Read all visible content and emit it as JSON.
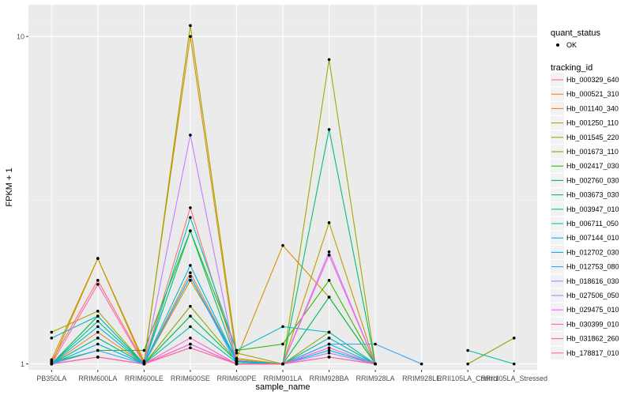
{
  "chart_data": {
    "type": "line",
    "title": "",
    "xlabel": "sample_name",
    "ylabel": "FPKM + 1",
    "y_scale": "log10",
    "ylim": [
      0.96,
      12.5
    ],
    "y_ticks": [
      1,
      10
    ],
    "grid": true,
    "legend_position": "right",
    "categories": [
      "PB350LA",
      "RRIM600LA",
      "RRIM600LE",
      "RRIM600SE",
      "RRIM600PE",
      "RRIM901LA",
      "RRIM928BA",
      "RRIM928LA",
      "RRIM928LE",
      "RRII105LA_Control",
      "RRII105LA_Stressed"
    ],
    "category_labels": [
      "PB350LA",
      "RRIM600LA",
      "RRIM600LE",
      "RRIM600SE",
      "RRIM600PE",
      "RRIM901LA",
      "RRIM928BA",
      "RRIM928LA",
      "RRIM928LE",
      "RRII105LA_Control",
      "RRII105LA_Stressed"
    ],
    "legend_quant": {
      "title": "quant_status",
      "entries": [
        "OK"
      ]
    },
    "legend_series_title": "tracking_id",
    "series": [
      {
        "name": "Hb_000329_640",
        "color": "#F8766D",
        "values": [
          1.02,
          1.8,
          1.01,
          3.0,
          1.03,
          1.0,
          1.2,
          1.0,
          null,
          null,
          null
        ]
      },
      {
        "name": "Hb_000521_310",
        "color": "#EA8331",
        "values": [
          1.0,
          1.25,
          1.0,
          1.9,
          1.02,
          1.0,
          1.05,
          1.0,
          null,
          null,
          null
        ]
      },
      {
        "name": "Hb_001140_340",
        "color": "#D89000",
        "values": [
          1.03,
          2.1,
          1.02,
          10.0,
          1.04,
          2.3,
          1.6,
          1.0,
          null,
          null,
          null
        ]
      },
      {
        "name": "Hb_001250_110",
        "color": "#C09B00",
        "values": [
          1.0,
          2.1,
          1.0,
          1.8,
          1.04,
          1.0,
          2.7,
          1.0,
          null,
          null,
          null
        ]
      },
      {
        "name": "Hb_001545_220",
        "color": "#A3A500",
        "values": [
          1.25,
          1.45,
          1.0,
          10.8,
          1.08,
          1.0,
          8.5,
          1.0,
          null,
          null,
          null
        ]
      },
      {
        "name": "Hb_001673_110",
        "color": "#7CAE00",
        "values": [
          1.0,
          1.2,
          1.0,
          1.5,
          1.02,
          1.0,
          1.25,
          1.0,
          null,
          1.0,
          1.2
        ]
      },
      {
        "name": "Hb_002417_030",
        "color": "#39B600",
        "values": [
          1.01,
          1.1,
          1.1,
          2.55,
          1.1,
          1.15,
          1.8,
          1.0,
          null,
          null,
          null
        ]
      },
      {
        "name": "Hb_002760_030",
        "color": "#00BB4E",
        "values": [
          1.0,
          1.4,
          1.0,
          1.4,
          1.02,
          1.0,
          1.6,
          1.0,
          null,
          null,
          null
        ]
      },
      {
        "name": "Hb_003673_030",
        "color": "#00BF7D",
        "values": [
          1.0,
          1.35,
          1.0,
          2.55,
          1.02,
          1.0,
          5.2,
          1.0,
          null,
          null,
          null
        ]
      },
      {
        "name": "Hb_003947_010",
        "color": "#00C1A3",
        "values": [
          1.0,
          1.2,
          1.0,
          1.3,
          1.01,
          1.0,
          1.2,
          1.0,
          null,
          1.1,
          1.0
        ]
      },
      {
        "name": "Hb_006711_050",
        "color": "#00BFC4",
        "values": [
          1.2,
          1.4,
          1.0,
          2.8,
          1.1,
          1.3,
          1.25,
          1.0,
          null,
          null,
          null
        ]
      },
      {
        "name": "Hb_007144_010",
        "color": "#00BAE0",
        "values": [
          1.0,
          1.3,
          1.0,
          2.0,
          1.02,
          1.0,
          1.15,
          1.0,
          null,
          null,
          null
        ]
      },
      {
        "name": "Hb_012702_030",
        "color": "#00B0F6",
        "values": [
          1.0,
          1.15,
          1.0,
          1.85,
          1.02,
          1.0,
          1.1,
          1.0,
          null,
          null,
          null
        ]
      },
      {
        "name": "Hb_012753_080",
        "color": "#35A2FF",
        "values": [
          1.0,
          1.1,
          1.0,
          1.85,
          1.0,
          1.0,
          1.15,
          1.15,
          1.0,
          null,
          null
        ]
      },
      {
        "name": "Hb_018616_030",
        "color": "#9590FF",
        "values": [
          1.0,
          1.05,
          1.0,
          1.15,
          1.0,
          1.0,
          1.08,
          1.0,
          null,
          null,
          null
        ]
      },
      {
        "name": "Hb_027506_050",
        "color": "#C77CFF",
        "values": [
          1.0,
          1.05,
          1.0,
          5.0,
          1.0,
          1.0,
          2.2,
          1.0,
          null,
          null,
          null
        ]
      },
      {
        "name": "Hb_029475_010",
        "color": "#E76BF3",
        "values": [
          1.0,
          1.05,
          1.0,
          1.12,
          1.0,
          1.0,
          1.05,
          1.0,
          null,
          null,
          null
        ]
      },
      {
        "name": "Hb_030399_010",
        "color": "#FA62DB",
        "values": [
          1.0,
          1.05,
          1.0,
          1.15,
          1.0,
          1.0,
          2.15,
          1.0,
          null,
          null,
          null
        ]
      },
      {
        "name": "Hb_031862_260",
        "color": "#FF62BC",
        "values": [
          1.0,
          1.75,
          1.0,
          1.2,
          1.0,
          1.0,
          1.12,
          1.0,
          null,
          null,
          null
        ]
      },
      {
        "name": "Hb_178817_010",
        "color": "#FF6C91",
        "values": [
          1.0,
          1.05,
          1.0,
          1.12,
          1.0,
          1.0,
          1.05,
          1.0,
          null,
          null,
          null
        ]
      }
    ]
  }
}
